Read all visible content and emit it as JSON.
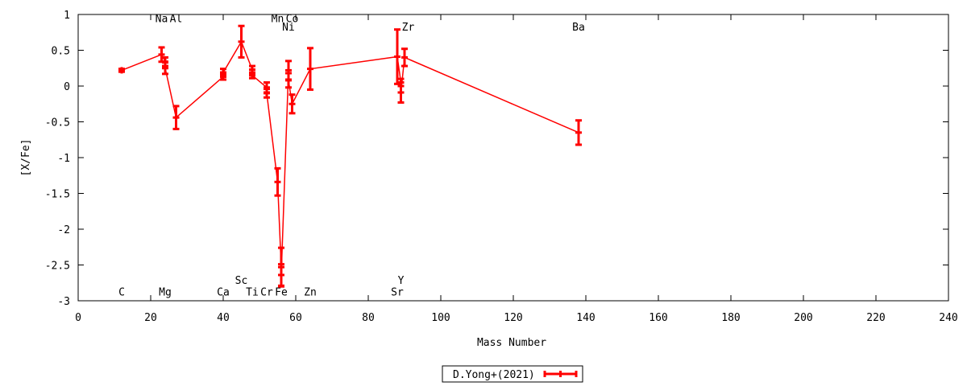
{
  "chart_data": {
    "type": "line",
    "xlabel": "Mass Number",
    "ylabel": "[X/Fe]",
    "xlim": [
      0,
      240
    ],
    "ylim": [
      -3,
      1
    ],
    "x_ticks": [
      0,
      20,
      40,
      60,
      80,
      100,
      120,
      140,
      160,
      180,
      200,
      220,
      240
    ],
    "y_ticks": [
      1,
      0.5,
      0,
      -0.5,
      -1,
      -1.5,
      -2,
      -2.5,
      -3
    ],
    "series_color": "#ff0000",
    "legend_position": "bottom-center",
    "series": [
      {
        "name": "D.Yong+(2021)",
        "points": [
          {
            "x": 12,
            "y": 0.22,
            "err": 0.02
          },
          {
            "x": 23,
            "y": 0.44,
            "err": 0.1
          },
          {
            "x": 24,
            "y": 0.34,
            "err": 0.06
          },
          {
            "x": 24,
            "y": 0.25,
            "err": 0.08
          },
          {
            "x": 27,
            "y": -0.44,
            "err": 0.16
          },
          {
            "x": 40,
            "y": 0.13,
            "err": 0.04
          },
          {
            "x": 40,
            "y": 0.19,
            "err": 0.05
          },
          {
            "x": 45,
            "y": 0.62,
            "err": 0.22
          },
          {
            "x": 48,
            "y": 0.23,
            "err": 0.05
          },
          {
            "x": 48,
            "y": 0.15,
            "err": 0.04
          },
          {
            "x": 52,
            "y": -0.02,
            "err": 0.07
          },
          {
            "x": 52,
            "y": -0.1,
            "err": 0.06
          },
          {
            "x": 55,
            "y": -1.34,
            "err": 0.19
          },
          {
            "x": 56,
            "y": -2.53,
            "err": 0.27
          },
          {
            "x": 56,
            "y": -2.64,
            "err": 0.15
          },
          {
            "x": 58,
            "y": 0.22,
            "err": 0.13
          },
          {
            "x": 58,
            "y": 0.08,
            "err": 0.1
          },
          {
            "x": 59,
            "y": -0.25,
            "err": 0.13
          },
          {
            "x": 64,
            "y": 0.24,
            "err": 0.29
          },
          {
            "x": 88,
            "y": 0.41,
            "err": 0.38
          },
          {
            "x": 89,
            "y": 0.05,
            "err": 0.05
          },
          {
            "x": 89,
            "y": -0.09,
            "err": 0.14
          },
          {
            "x": 90,
            "y": 0.4,
            "err": 0.12
          },
          {
            "x": 138,
            "y": -0.65,
            "err": 0.17
          }
        ]
      }
    ],
    "element_labels": [
      {
        "text": "C",
        "x": 12,
        "y": -2.87
      },
      {
        "text": "Na",
        "x": 23,
        "y": 0.95
      },
      {
        "text": "Mg",
        "x": 24,
        "y": -2.87
      },
      {
        "text": "Al",
        "x": 27,
        "y": 0.95
      },
      {
        "text": "Ca",
        "x": 40,
        "y": -2.87
      },
      {
        "text": "Sc",
        "x": 45,
        "y": -2.71
      },
      {
        "text": "Ti",
        "x": 48,
        "y": -2.87
      },
      {
        "text": "Cr",
        "x": 52,
        "y": -2.87
      },
      {
        "text": "Mn",
        "x": 55,
        "y": 0.95
      },
      {
        "text": "Fe",
        "x": 56,
        "y": -2.87
      },
      {
        "text": "Co",
        "x": 59,
        "y": 0.95
      },
      {
        "text": "Ni",
        "x": 58,
        "y": 0.83
      },
      {
        "text": "Zn",
        "x": 64,
        "y": -2.87
      },
      {
        "text": "Sr",
        "x": 88,
        "y": -2.87
      },
      {
        "text": "Y",
        "x": 89,
        "y": -2.71
      },
      {
        "text": "Zr",
        "x": 91,
        "y": 0.83
      },
      {
        "text": "Ba",
        "x": 138,
        "y": 0.83
      }
    ]
  }
}
